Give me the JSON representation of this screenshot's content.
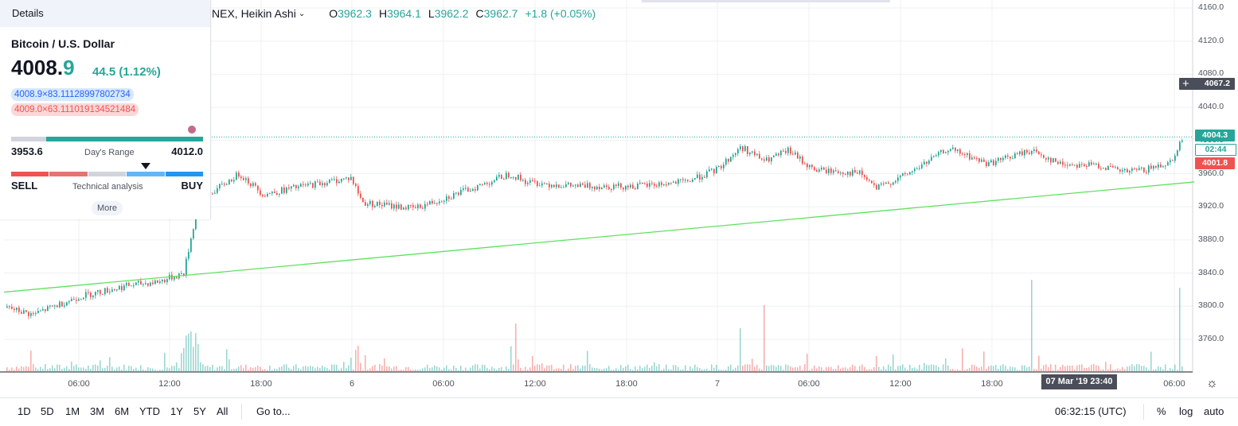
{
  "legend": {
    "symbol": "NEX, Heikin Ashi",
    "open_key": "O",
    "open": "3962.3",
    "high_key": "H",
    "high": "3964.1",
    "low_key": "L",
    "low": "3962.2",
    "close_key": "C",
    "close": "3962.7",
    "change": "+1.8 (+0.05%)"
  },
  "details": {
    "header": "Details",
    "name": "Bitcoin / U.S. Dollar",
    "price_main": "4008.",
    "price_frac": "9",
    "change": "44.5 (1.12%)",
    "bid": "4008.9×83.11128997802734",
    "ask": "4009.0×63.111019134521484",
    "range_low": "3953.6",
    "range_high": "4012.0",
    "range_label": "Day's Range",
    "ta_sell": "SELL",
    "ta_buy": "BUY",
    "ta_label": "Technical analysis",
    "more": "More"
  },
  "price_axis": {
    "ticks": [
      "4160.0",
      "4120.0",
      "4080.0",
      "4040.0",
      "4000.0",
      "3960.0",
      "3920.0",
      "3880.0",
      "3840.0",
      "3800.0",
      "3760.0"
    ],
    "cross_price": "4067.2",
    "last_price": "4004.3",
    "timer": "02:44",
    "ask_price": "4001.8"
  },
  "time_axis": {
    "ticks": [
      "06:00",
      "12:00",
      "18:00",
      "6",
      "06:00",
      "12:00",
      "18:00",
      "7",
      "06:00",
      "12:00",
      "18:00",
      "06:00"
    ],
    "crosshair_date": "07 Mar '19   23:40"
  },
  "toolbar": {
    "ranges": [
      "1D",
      "5D",
      "1M",
      "3M",
      "6M",
      "YTD",
      "1Y",
      "5Y",
      "All"
    ],
    "goto": "Go to...",
    "clock": "06:32:15 (UTC)",
    "percent": "%",
    "log": "log",
    "auto": "auto"
  },
  "colors": {
    "up": "#26a69a",
    "down": "#ef5350",
    "trendline": "#5ee25e",
    "grid": "#eef0f3"
  },
  "chart_data": {
    "type": "candlestick",
    "style": "Heikin Ashi",
    "ylim": [
      3720,
      4170
    ],
    "trendline": [
      [
        0,
        3817
      ],
      [
        1500,
        3950
      ]
    ],
    "price_path": [
      [
        0,
        3800
      ],
      [
        40,
        3790
      ],
      [
        100,
        3812
      ],
      [
        160,
        3825
      ],
      [
        200,
        3830
      ],
      [
        230,
        3840
      ],
      [
        245,
        3910
      ],
      [
        262,
        3935
      ],
      [
        300,
        3960
      ],
      [
        330,
        3935
      ],
      [
        380,
        3945
      ],
      [
        440,
        3955
      ],
      [
        455,
        3925
      ],
      [
        520,
        3918
      ],
      [
        600,
        3945
      ],
      [
        640,
        3960
      ],
      [
        660,
        3950
      ],
      [
        720,
        3945
      ],
      [
        800,
        3945
      ],
      [
        860,
        3950
      ],
      [
        900,
        3965
      ],
      [
        930,
        3992
      ],
      [
        960,
        3975
      ],
      [
        990,
        3988
      ],
      [
        1020,
        3965
      ],
      [
        1080,
        3960
      ],
      [
        1100,
        3942
      ],
      [
        1140,
        3960
      ],
      [
        1190,
        3990
      ],
      [
        1240,
        3972
      ],
      [
        1295,
        3988
      ],
      [
        1330,
        3972
      ],
      [
        1380,
        3970
      ],
      [
        1410,
        3962
      ],
      [
        1440,
        3965
      ],
      [
        1470,
        3975
      ],
      [
        1485,
        4004
      ]
    ]
  }
}
